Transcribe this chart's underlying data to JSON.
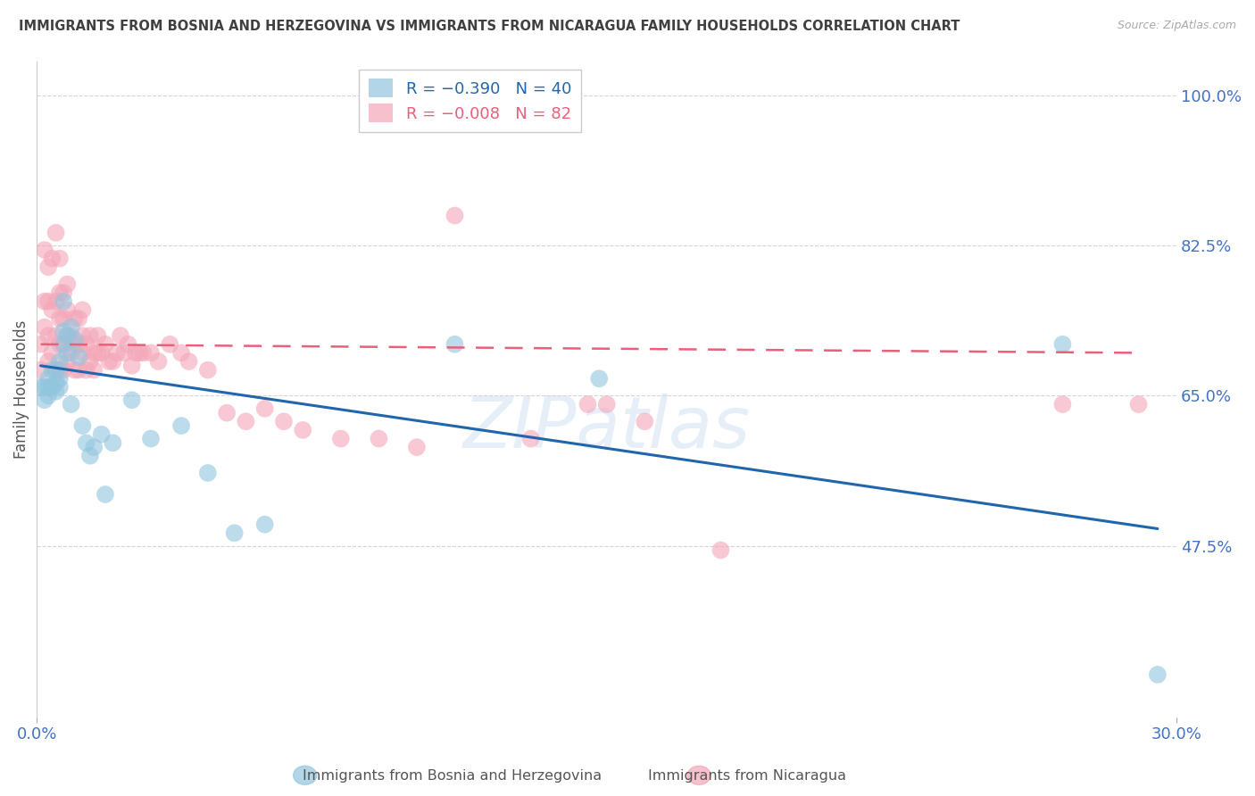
{
  "title": "IMMIGRANTS FROM BOSNIA AND HERZEGOVINA VS IMMIGRANTS FROM NICARAGUA FAMILY HOUSEHOLDS CORRELATION CHART",
  "source": "Source: ZipAtlas.com",
  "ylabel": "Family Households",
  "xlim": [
    0.0,
    0.3
  ],
  "ylim": [
    0.275,
    1.04
  ],
  "yticks": [
    1.0,
    0.825,
    0.65,
    0.475
  ],
  "ytick_labels": [
    "100.0%",
    "82.5%",
    "65.0%",
    "47.5%"
  ],
  "xtick_vals": [
    0.0,
    0.3
  ],
  "xtick_labels": [
    "0.0%",
    "30.0%"
  ],
  "blue_color": "#92c5de",
  "pink_color": "#f4a6b8",
  "blue_line_color": "#2166ac",
  "pink_line_color": "#e8607a",
  "legend_R_blue": "R = −0.390",
  "legend_N_blue": "N = 40",
  "legend_R_pink": "R = −0.008",
  "legend_N_pink": "N = 82",
  "blue_scatter_x": [
    0.001,
    0.002,
    0.002,
    0.003,
    0.003,
    0.003,
    0.004,
    0.004,
    0.005,
    0.005,
    0.005,
    0.006,
    0.006,
    0.006,
    0.007,
    0.007,
    0.008,
    0.008,
    0.009,
    0.01,
    0.011,
    0.012,
    0.013,
    0.015,
    0.017,
    0.02,
    0.025,
    0.03,
    0.038,
    0.045,
    0.052,
    0.06,
    0.11,
    0.148,
    0.27,
    0.295,
    0.007,
    0.009,
    0.014,
    0.018
  ],
  "blue_scatter_y": [
    0.66,
    0.645,
    0.66,
    0.65,
    0.66,
    0.67,
    0.66,
    0.68,
    0.655,
    0.665,
    0.68,
    0.66,
    0.67,
    0.69,
    0.71,
    0.725,
    0.7,
    0.72,
    0.73,
    0.715,
    0.695,
    0.615,
    0.595,
    0.59,
    0.605,
    0.595,
    0.645,
    0.6,
    0.615,
    0.56,
    0.49,
    0.5,
    0.71,
    0.67,
    0.71,
    0.325,
    0.76,
    0.64,
    0.58,
    0.535
  ],
  "pink_scatter_x": [
    0.001,
    0.001,
    0.002,
    0.002,
    0.002,
    0.003,
    0.003,
    0.003,
    0.003,
    0.004,
    0.004,
    0.004,
    0.005,
    0.005,
    0.005,
    0.005,
    0.006,
    0.006,
    0.006,
    0.006,
    0.006,
    0.007,
    0.007,
    0.007,
    0.007,
    0.008,
    0.008,
    0.008,
    0.008,
    0.009,
    0.009,
    0.01,
    0.01,
    0.01,
    0.011,
    0.011,
    0.011,
    0.012,
    0.012,
    0.012,
    0.013,
    0.013,
    0.014,
    0.014,
    0.015,
    0.015,
    0.016,
    0.016,
    0.017,
    0.018,
    0.019,
    0.02,
    0.021,
    0.022,
    0.023,
    0.024,
    0.025,
    0.026,
    0.027,
    0.028,
    0.03,
    0.032,
    0.035,
    0.038,
    0.04,
    0.045,
    0.05,
    0.055,
    0.06,
    0.065,
    0.07,
    0.08,
    0.09,
    0.1,
    0.11,
    0.13,
    0.145,
    0.15,
    0.16,
    0.18,
    0.27,
    0.29
  ],
  "pink_scatter_y": [
    0.68,
    0.71,
    0.73,
    0.76,
    0.82,
    0.69,
    0.72,
    0.76,
    0.8,
    0.7,
    0.75,
    0.81,
    0.68,
    0.72,
    0.76,
    0.84,
    0.68,
    0.71,
    0.74,
    0.77,
    0.81,
    0.68,
    0.71,
    0.74,
    0.77,
    0.69,
    0.72,
    0.75,
    0.78,
    0.7,
    0.72,
    0.68,
    0.71,
    0.74,
    0.68,
    0.71,
    0.74,
    0.7,
    0.72,
    0.75,
    0.68,
    0.71,
    0.69,
    0.72,
    0.68,
    0.7,
    0.7,
    0.72,
    0.7,
    0.71,
    0.69,
    0.69,
    0.7,
    0.72,
    0.7,
    0.71,
    0.685,
    0.7,
    0.7,
    0.7,
    0.7,
    0.69,
    0.71,
    0.7,
    0.69,
    0.68,
    0.63,
    0.62,
    0.635,
    0.62,
    0.61,
    0.6,
    0.6,
    0.59,
    0.86,
    0.6,
    0.64,
    0.64,
    0.62,
    0.47,
    0.64,
    0.64
  ],
  "blue_trend_x": [
    0.001,
    0.295
  ],
  "blue_trend_y": [
    0.685,
    0.495
  ],
  "pink_trend_x": [
    0.001,
    0.29
  ],
  "pink_trend_y": [
    0.71,
    0.7
  ],
  "watermark_text": "ZIPatlas",
  "bg_color": "#ffffff",
  "grid_color": "#d0d0d0",
  "tick_color": "#4472c4",
  "title_color": "#404040",
  "ylabel_color": "#555555"
}
